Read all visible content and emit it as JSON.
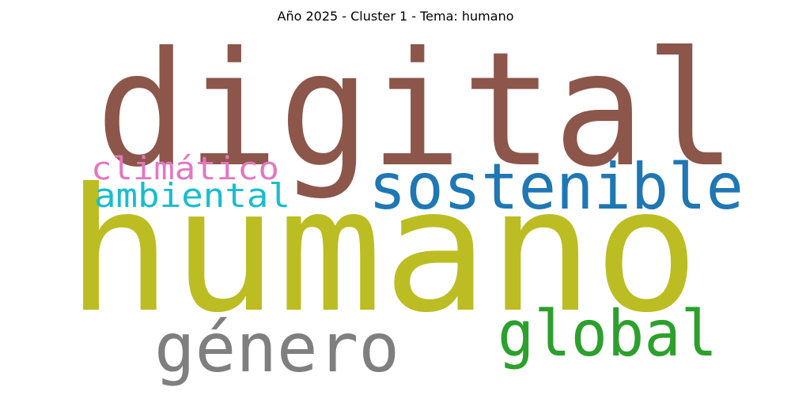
{
  "title": "Año 2025 - Cluster 1 - Tema: humano",
  "words": [
    {
      "text": "digital",
      "color": "#8c564b"
    },
    {
      "text": "humano",
      "color": "#bcbd22"
    },
    {
      "text": "sostenible",
      "color": "#1f77b4"
    },
    {
      "text": "climático",
      "color": "#e377c2"
    },
    {
      "text": "ambiental",
      "color": "#17becf"
    },
    {
      "text": "género",
      "color": "#7f7f7f"
    },
    {
      "text": "global",
      "color": "#2ca02c"
    }
  ]
}
